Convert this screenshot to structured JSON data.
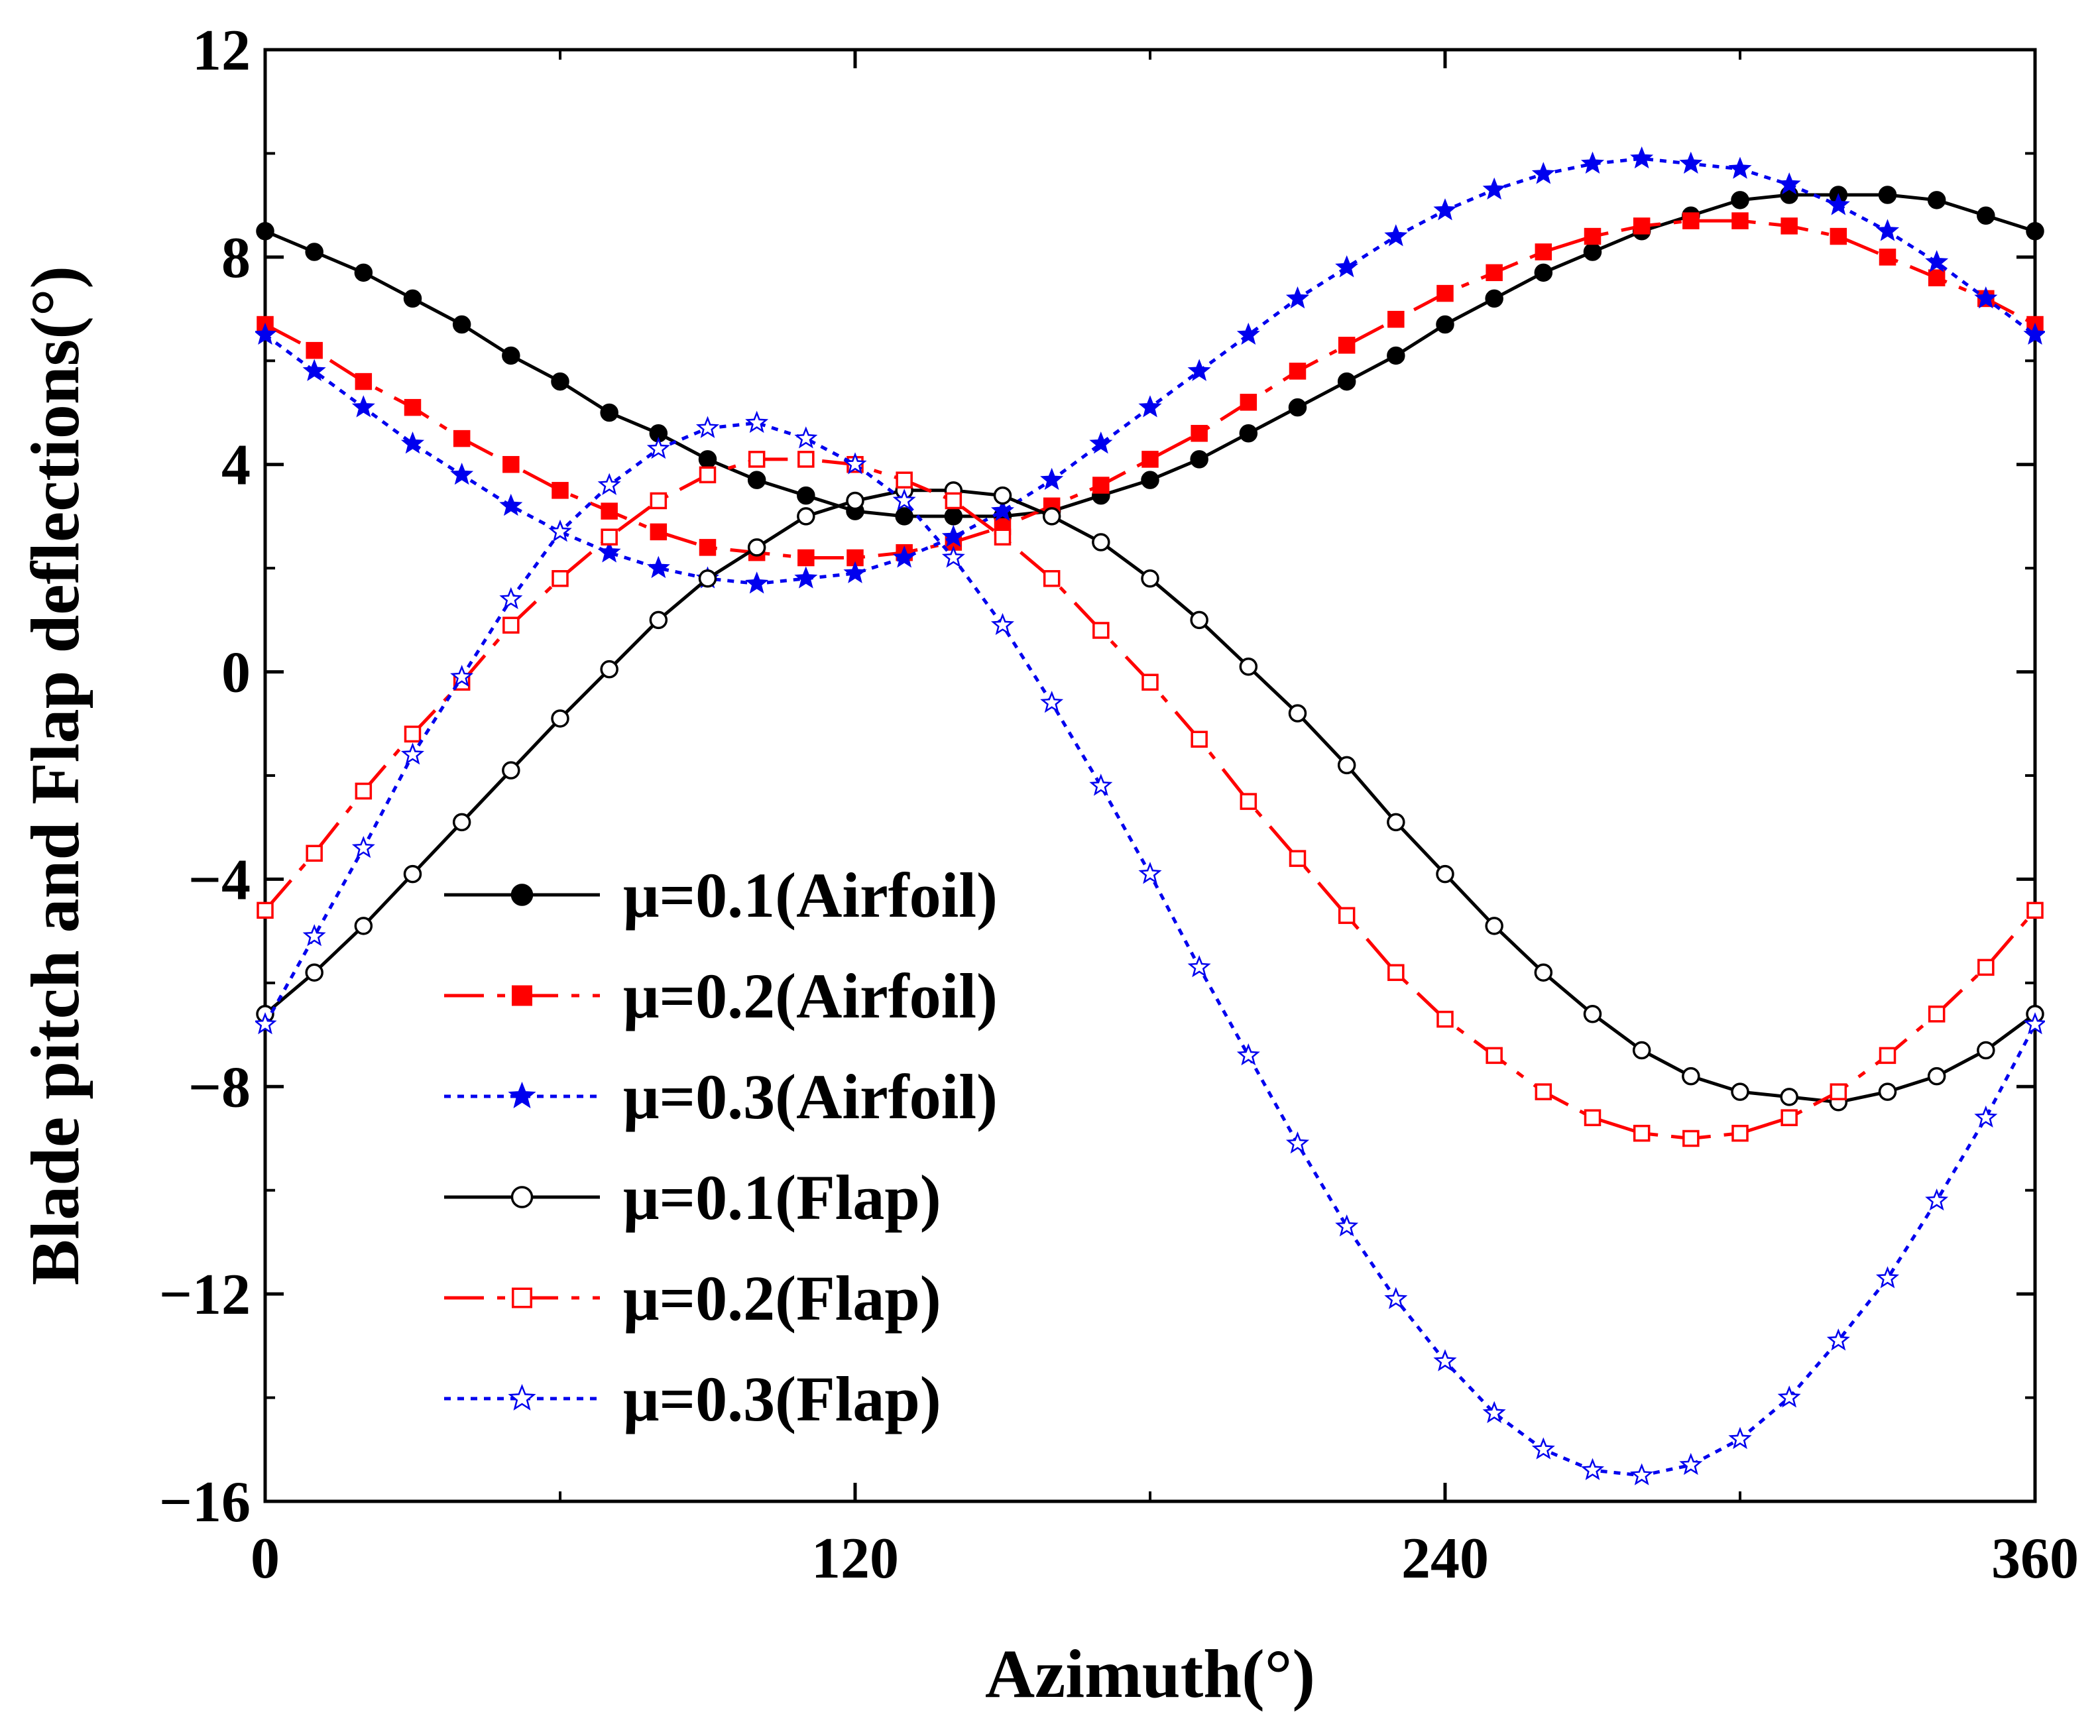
{
  "chart_data": {
    "type": "line",
    "title": "",
    "xlabel": "Azimuth(°)",
    "ylabel": "Blade pitch and Flap deflections(°)",
    "xlim": [
      0,
      360
    ],
    "ylim": [
      -16,
      12
    ],
    "xticks": [
      0,
      120,
      240,
      360
    ],
    "yticks": [
      12,
      8,
      4,
      0,
      -4,
      -8,
      -12,
      -16
    ],
    "ytick_labels": [
      "12",
      "8",
      "4",
      "0",
      "−4",
      "−8",
      "−12",
      "−16"
    ],
    "grid": false,
    "legend_position": "lower-left",
    "x": [
      0,
      10,
      20,
      30,
      40,
      50,
      60,
      70,
      80,
      90,
      100,
      110,
      120,
      130,
      140,
      150,
      160,
      170,
      180,
      190,
      200,
      210,
      220,
      230,
      240,
      250,
      260,
      270,
      280,
      290,
      300,
      310,
      320,
      330,
      340,
      350,
      360
    ],
    "series": [
      {
        "name": "μ=0.1(Airfoil)",
        "color": "#000000",
        "dash": "solid",
        "marker": "circle",
        "filled": true,
        "values": [
          8.5,
          8.1,
          7.7,
          7.2,
          6.7,
          6.1,
          5.6,
          5.0,
          4.6,
          4.1,
          3.7,
          3.4,
          3.1,
          3.0,
          3.0,
          3.0,
          3.1,
          3.4,
          3.7,
          4.1,
          4.6,
          5.1,
          5.6,
          6.1,
          6.7,
          7.2,
          7.7,
          8.1,
          8.5,
          8.8,
          9.1,
          9.2,
          9.2,
          9.2,
          9.1,
          8.8,
          8.5
        ]
      },
      {
        "name": "μ=0.2(Airfoil)",
        "color": "#ff0000",
        "dash": "dashdot",
        "marker": "square",
        "filled": true,
        "values": [
          6.7,
          6.2,
          5.6,
          5.1,
          4.5,
          4.0,
          3.5,
          3.1,
          2.7,
          2.4,
          2.3,
          2.2,
          2.2,
          2.3,
          2.5,
          2.8,
          3.2,
          3.6,
          4.1,
          4.6,
          5.2,
          5.8,
          6.3,
          6.8,
          7.3,
          7.7,
          8.1,
          8.4,
          8.6,
          8.7,
          8.7,
          8.6,
          8.4,
          8.0,
          7.6,
          7.2,
          6.7
        ]
      },
      {
        "name": "μ=0.3(Airfoil)",
        "color": "#0000ee",
        "dash": "dot",
        "marker": "star",
        "filled": true,
        "values": [
          6.5,
          5.8,
          5.1,
          4.4,
          3.8,
          3.2,
          2.7,
          2.3,
          2.0,
          1.8,
          1.7,
          1.8,
          1.9,
          2.2,
          2.6,
          3.1,
          3.7,
          4.4,
          5.1,
          5.8,
          6.5,
          7.2,
          7.8,
          8.4,
          8.9,
          9.3,
          9.6,
          9.8,
          9.9,
          9.8,
          9.7,
          9.4,
          9.0,
          8.5,
          7.9,
          7.2,
          6.5
        ]
      },
      {
        "name": "μ=0.1(Flap)",
        "color": "#000000",
        "dash": "solid",
        "marker": "circle",
        "filled": false,
        "values": [
          -6.6,
          -5.8,
          -4.9,
          -3.9,
          -2.9,
          -1.9,
          -0.9,
          0.05,
          1.0,
          1.8,
          2.4,
          3.0,
          3.3,
          3.5,
          3.5,
          3.4,
          3.0,
          2.5,
          1.8,
          1.0,
          0.1,
          -0.8,
          -1.8,
          -2.9,
          -3.9,
          -4.9,
          -5.8,
          -6.6,
          -7.3,
          -7.8,
          -8.1,
          -8.2,
          -8.3,
          -8.1,
          -7.8,
          -7.3,
          -6.6
        ]
      },
      {
        "name": "μ=0.2(Flap)",
        "color": "#ff0000",
        "dash": "dashdot",
        "marker": "square",
        "filled": false,
        "values": [
          -4.6,
          -3.5,
          -2.3,
          -1.2,
          -0.2,
          0.9,
          1.8,
          2.6,
          3.3,
          3.8,
          4.1,
          4.1,
          4.0,
          3.7,
          3.3,
          2.6,
          1.8,
          0.8,
          -0.2,
          -1.3,
          -2.5,
          -3.6,
          -4.7,
          -5.8,
          -6.7,
          -7.4,
          -8.1,
          -8.6,
          -8.9,
          -9.0,
          -8.9,
          -8.6,
          -8.1,
          -7.4,
          -6.6,
          -5.7,
          -4.6
        ]
      },
      {
        "name": "μ=0.3(Flap)",
        "color": "#0000ee",
        "dash": "dot",
        "marker": "star",
        "filled": false,
        "values": [
          -6.8,
          -5.1,
          -3.4,
          -1.6,
          -0.1,
          1.4,
          2.7,
          3.6,
          4.3,
          4.7,
          4.8,
          4.5,
          4.0,
          3.3,
          2.2,
          0.9,
          -0.6,
          -2.2,
          -3.9,
          -5.7,
          -7.4,
          -9.1,
          -10.7,
          -12.1,
          -13.3,
          -14.3,
          -15.0,
          -15.4,
          -15.5,
          -15.3,
          -14.8,
          -14.0,
          -12.9,
          -11.7,
          -10.2,
          -8.6,
          -6.8
        ]
      }
    ]
  }
}
